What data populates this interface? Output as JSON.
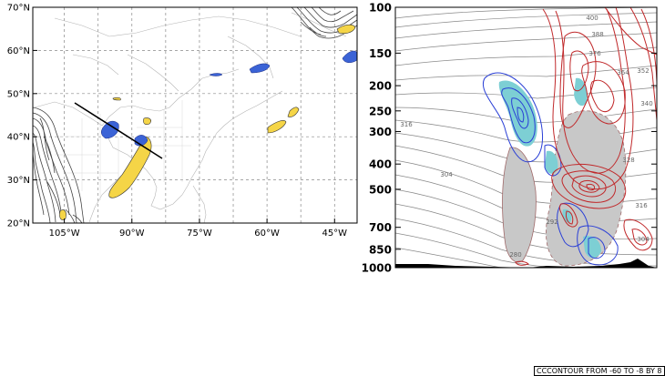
{
  "chart_data": [
    {
      "type": "map",
      "lat_ticks": [
        "70°N",
        "60°N",
        "50°N",
        "40°N",
        "30°N",
        "20°N"
      ],
      "lon_ticks": [
        "105°W",
        "90°W",
        "75°W",
        "60°W",
        "45°W"
      ],
      "lat_range": [
        20,
        70
      ],
      "lon_range": [
        -112,
        -40
      ],
      "grid": true,
      "cross_section_line": {
        "start": [
          -98,
          48
        ],
        "end": [
          -79,
          35
        ]
      },
      "colors": {
        "positive_fill": "#f5d547",
        "negative_fill": "#3b63d6",
        "terrain_contour": "#444444",
        "grid": "#888888"
      }
    },
    {
      "type": "cross-section",
      "y_scale": "log-pressure",
      "pressure_ticks": [
        "100",
        "150",
        "200",
        "250",
        "300",
        "400",
        "500",
        "700",
        "850",
        "1000"
      ],
      "pressure_range": [
        100,
        1000
      ],
      "theta_contour_labels": [
        "400",
        "388",
        "376",
        "364",
        "352",
        "340",
        "316",
        "304",
        "328",
        "316",
        "292",
        "280",
        "304"
      ],
      "colors": {
        "theta_contour": "#888888",
        "red_contour": "#c0282a",
        "blue_contour": "#2a3fd6",
        "cyan_fill": "#7dcfd4",
        "gray_fill": "#c8c8c8",
        "terrain": "#000000"
      }
    }
  ],
  "footer": {
    "text": "CONTOUR FROM -60 TO -8 BY 8",
    "prefix": "CC"
  }
}
